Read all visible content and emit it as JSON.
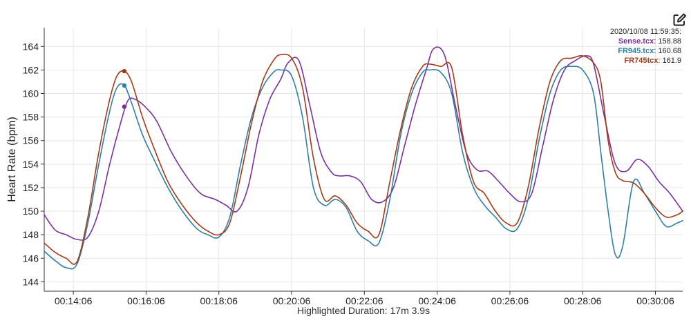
{
  "toolbar": {
    "edit_icon": "edit-icon"
  },
  "legend": {
    "timestamp": "2020/10/08 11:59:35:",
    "items": [
      {
        "name": "Sense.tcx",
        "value": "158.88",
        "color": "#7a2fa0"
      },
      {
        "name": "FR945.tcx",
        "value": "160.68",
        "color": "#2e7ea6"
      },
      {
        "name": "FR745tcx",
        "value": "161.9",
        "color": "#a33a17"
      }
    ]
  },
  "chart_data": {
    "type": "line",
    "ylabel": "Heart Rate (bpm)",
    "xlabel": "Highlighted Duration: 17m 3.9s",
    "x_unit": "minutes",
    "xlim": [
      13.3,
      30.85
    ],
    "ylim": [
      143.2,
      165.6
    ],
    "yticks": [
      144,
      146,
      148,
      150,
      152,
      154,
      156,
      158,
      160,
      162,
      164
    ],
    "xticks": [
      {
        "value": 14.1,
        "label": "00:14:06"
      },
      {
        "value": 16.1,
        "label": "00:16:06"
      },
      {
        "value": 18.1,
        "label": "00:18:06"
      },
      {
        "value": 20.1,
        "label": "00:20:06"
      },
      {
        "value": 22.1,
        "label": "00:22:06"
      },
      {
        "value": 24.1,
        "label": "00:24:06"
      },
      {
        "value": 26.1,
        "label": "00:26:06"
      },
      {
        "value": 28.1,
        "label": "00:28:06"
      },
      {
        "value": 30.1,
        "label": "00:30:06"
      }
    ],
    "grid": true,
    "cursor_x": 15.5,
    "series": [
      {
        "name": "Sense.tcx",
        "color": "#7a2fa0",
        "x": [
          13.3,
          13.6,
          13.9,
          14.2,
          14.5,
          14.8,
          15.1,
          15.4,
          15.6,
          15.8,
          16.1,
          16.4,
          16.8,
          17.2,
          17.6,
          18.0,
          18.3,
          18.6,
          18.9,
          19.2,
          19.5,
          19.8,
          20.0,
          20.3,
          20.6,
          20.9,
          21.2,
          21.4,
          21.7,
          22.0,
          22.3,
          22.6,
          22.9,
          23.2,
          23.5,
          23.8,
          24.0,
          24.3,
          24.6,
          24.9,
          25.2,
          25.5,
          25.8,
          26.1,
          26.4,
          26.7,
          27.0,
          27.3,
          27.6,
          27.9,
          28.2,
          28.4,
          28.7,
          29.0,
          29.3,
          29.6,
          29.9,
          30.2,
          30.5,
          30.85
        ],
        "values": [
          149.7,
          148.4,
          148.0,
          147.6,
          147.8,
          150.0,
          154.0,
          157.5,
          159.4,
          159.5,
          158.8,
          157.6,
          155.0,
          153.0,
          151.5,
          151.0,
          150.5,
          150.0,
          152.0,
          156.5,
          159.5,
          161.2,
          162.6,
          162.8,
          159.0,
          155.0,
          153.3,
          153.0,
          153.0,
          152.5,
          151.0,
          150.8,
          152.0,
          155.5,
          159.0,
          162.0,
          163.8,
          163.3,
          159.0,
          155.0,
          153.5,
          153.4,
          152.5,
          151.5,
          150.8,
          151.5,
          155.5,
          159.5,
          162.0,
          162.8,
          163.2,
          162.5,
          158.0,
          154.0,
          153.4,
          154.4,
          153.8,
          152.5,
          151.5,
          150.0
        ]
      },
      {
        "name": "FR945.tcx",
        "color": "#2e7ea6",
        "x": [
          13.3,
          13.6,
          13.9,
          14.2,
          14.5,
          14.8,
          15.1,
          15.3,
          15.5,
          15.7,
          16.0,
          16.3,
          16.7,
          17.1,
          17.5,
          17.8,
          18.1,
          18.4,
          18.7,
          19.0,
          19.3,
          19.6,
          19.8,
          20.1,
          20.4,
          20.7,
          21.0,
          21.3,
          21.6,
          21.9,
          22.2,
          22.5,
          22.8,
          23.1,
          23.4,
          23.7,
          23.9,
          24.2,
          24.5,
          24.8,
          25.1,
          25.4,
          25.7,
          26.0,
          26.3,
          26.6,
          26.9,
          27.2,
          27.5,
          27.8,
          28.1,
          28.4,
          28.6,
          28.8,
          29.0,
          29.2,
          29.5,
          29.8,
          30.1,
          30.4,
          30.7,
          30.85
        ],
        "values": [
          146.6,
          145.8,
          145.2,
          145.5,
          149.0,
          154.0,
          158.5,
          160.5,
          160.7,
          159.2,
          156.5,
          154.5,
          152.0,
          150.0,
          148.5,
          148.0,
          147.8,
          149.5,
          154.0,
          158.0,
          160.5,
          161.8,
          162.0,
          161.5,
          158.0,
          152.0,
          150.5,
          151.0,
          150.3,
          148.3,
          147.5,
          147.3,
          151.0,
          156.5,
          160.0,
          161.8,
          162.0,
          161.8,
          160.0,
          155.0,
          152.0,
          150.5,
          149.5,
          148.5,
          148.5,
          151.0,
          156.0,
          160.0,
          162.0,
          162.3,
          162.0,
          160.0,
          155.0,
          150.0,
          146.3,
          147.0,
          152.5,
          151.5,
          150.0,
          148.7,
          149.0,
          149.2
        ]
      },
      {
        "name": "FR745tcx",
        "color": "#a33a17",
        "x": [
          13.3,
          13.6,
          13.9,
          14.2,
          14.5,
          14.8,
          15.1,
          15.3,
          15.5,
          15.7,
          16.0,
          16.3,
          16.7,
          17.1,
          17.5,
          17.8,
          18.1,
          18.4,
          18.7,
          19.0,
          19.3,
          19.6,
          19.8,
          20.1,
          20.4,
          20.7,
          21.0,
          21.3,
          21.6,
          21.9,
          22.2,
          22.5,
          22.8,
          23.1,
          23.4,
          23.7,
          23.9,
          24.2,
          24.5,
          24.8,
          25.1,
          25.4,
          25.7,
          26.0,
          26.3,
          26.6,
          26.9,
          27.2,
          27.5,
          27.8,
          28.1,
          28.4,
          28.6,
          28.8,
          29.0,
          29.2,
          29.5,
          29.8,
          30.1,
          30.4,
          30.7,
          30.85
        ],
        "values": [
          147.3,
          146.5,
          146.0,
          145.7,
          149.5,
          155.0,
          159.5,
          161.5,
          161.9,
          161.0,
          158.0,
          155.5,
          152.5,
          150.5,
          149.0,
          148.3,
          148.0,
          149.0,
          153.0,
          157.5,
          161.0,
          162.8,
          163.3,
          163.0,
          160.5,
          154.5,
          151.0,
          151.3,
          150.5,
          149.0,
          148.3,
          148.0,
          152.5,
          157.0,
          160.5,
          162.3,
          162.5,
          162.3,
          162.2,
          156.5,
          152.5,
          151.5,
          150.0,
          149.0,
          149.0,
          152.0,
          157.0,
          161.0,
          162.8,
          163.0,
          163.2,
          162.6,
          161.0,
          156.0,
          153.3,
          152.6,
          152.4,
          151.5,
          150.3,
          149.5,
          149.7,
          150.0
        ]
      }
    ]
  }
}
